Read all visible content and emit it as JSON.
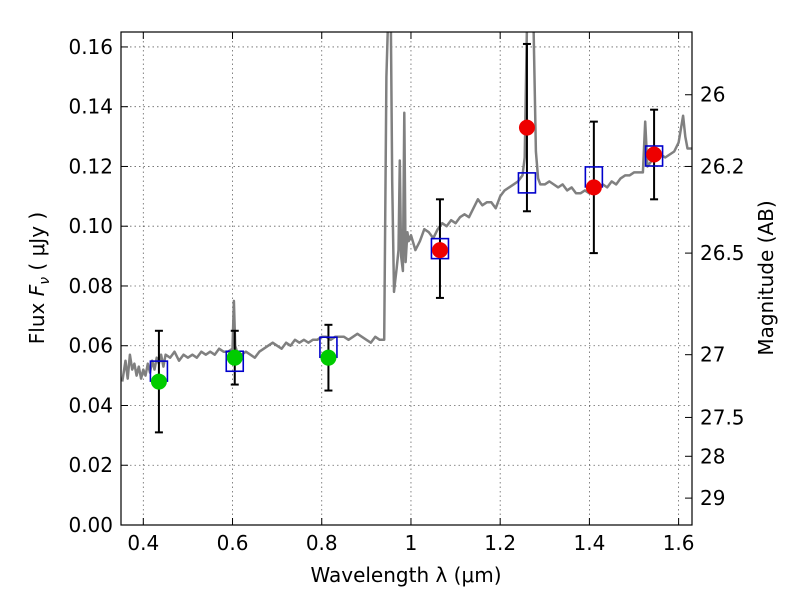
{
  "chart_data": {
    "type": "scatter",
    "xlabel": "Wavelength  λ (μm)",
    "ylabel_parts": [
      "Flux  ",
      "F",
      "ν",
      "  (  μJy  )"
    ],
    "ylabel_right": "Magnitude (AB)",
    "xlim": [
      0.35,
      1.63
    ],
    "ylim": [
      0.0,
      0.165
    ],
    "x_ticks": [
      {
        "v": 0.4,
        "label": "0.4"
      },
      {
        "v": 0.6,
        "label": "0.6"
      },
      {
        "v": 0.8,
        "label": "0.8"
      },
      {
        "v": 1.0,
        "label": "1"
      },
      {
        "v": 1.2,
        "label": "1.2"
      },
      {
        "v": 1.4,
        "label": "1.4"
      },
      {
        "v": 1.6,
        "label": "1.6"
      }
    ],
    "y_ticks": [
      {
        "v": 0.0,
        "label": "0.00"
      },
      {
        "v": 0.02,
        "label": "0.02"
      },
      {
        "v": 0.04,
        "label": "0.04"
      },
      {
        "v": 0.06,
        "label": "0.06"
      },
      {
        "v": 0.08,
        "label": "0.08"
      },
      {
        "v": 0.1,
        "label": "0.10"
      },
      {
        "v": 0.12,
        "label": "0.12"
      },
      {
        "v": 0.14,
        "label": "0.14"
      },
      {
        "v": 0.16,
        "label": "0.16"
      }
    ],
    "right_ticks": [
      {
        "flux": 0.144,
        "label": "26"
      },
      {
        "flux": 0.12,
        "label": "26.2"
      },
      {
        "flux": 0.091,
        "label": "26.5"
      },
      {
        "flux": 0.057,
        "label": "27"
      },
      {
        "flux": 0.036,
        "label": "27.5"
      },
      {
        "flux": 0.023,
        "label": "28"
      },
      {
        "flux": 0.009,
        "label": "29"
      }
    ],
    "grid": true,
    "series": [
      {
        "kind": "model_sed",
        "color": "#808080",
        "x": [
          0.353,
          0.36,
          0.365,
          0.37,
          0.375,
          0.38,
          0.385,
          0.39,
          0.395,
          0.4,
          0.405,
          0.41,
          0.415,
          0.42,
          0.425,
          0.43,
          0.435,
          0.44,
          0.445,
          0.45,
          0.46,
          0.47,
          0.48,
          0.49,
          0.5,
          0.51,
          0.52,
          0.53,
          0.54,
          0.55,
          0.56,
          0.57,
          0.58,
          0.59,
          0.6,
          0.603,
          0.606,
          0.61,
          0.62,
          0.63,
          0.64,
          0.65,
          0.66,
          0.67,
          0.68,
          0.69,
          0.7,
          0.71,
          0.72,
          0.73,
          0.74,
          0.75,
          0.76,
          0.77,
          0.78,
          0.79,
          0.8,
          0.81,
          0.82,
          0.83,
          0.84,
          0.85,
          0.86,
          0.87,
          0.88,
          0.89,
          0.9,
          0.91,
          0.92,
          0.93,
          0.94,
          0.945,
          0.948,
          0.952,
          0.955,
          0.958,
          0.962,
          0.965,
          0.968,
          0.972,
          0.975,
          0.978,
          0.982,
          0.985,
          0.988,
          0.992,
          0.995,
          1.0,
          1.01,
          1.02,
          1.03,
          1.04,
          1.05,
          1.06,
          1.07,
          1.08,
          1.09,
          1.1,
          1.11,
          1.12,
          1.13,
          1.14,
          1.15,
          1.16,
          1.17,
          1.18,
          1.19,
          1.2,
          1.21,
          1.22,
          1.23,
          1.24,
          1.25,
          1.255,
          1.26,
          1.265,
          1.27,
          1.275,
          1.28,
          1.285,
          1.29,
          1.3,
          1.31,
          1.32,
          1.33,
          1.34,
          1.35,
          1.36,
          1.37,
          1.38,
          1.39,
          1.4,
          1.41,
          1.42,
          1.43,
          1.44,
          1.45,
          1.46,
          1.47,
          1.48,
          1.49,
          1.5,
          1.51,
          1.52,
          1.525,
          1.53,
          1.535,
          1.54,
          1.55,
          1.56,
          1.57,
          1.58,
          1.59,
          1.6,
          1.61,
          1.615,
          1.62,
          1.63
        ],
        "y": [
          0.048,
          0.055,
          0.049,
          0.057,
          0.052,
          0.054,
          0.05,
          0.053,
          0.049,
          0.052,
          0.05,
          0.054,
          0.051,
          0.055,
          0.052,
          0.056,
          0.054,
          0.057,
          0.053,
          0.057,
          0.056,
          0.058,
          0.055,
          0.057,
          0.056,
          0.057,
          0.056,
          0.058,
          0.057,
          0.058,
          0.057,
          0.059,
          0.058,
          0.058,
          0.059,
          0.075,
          0.06,
          0.058,
          0.057,
          0.058,
          0.057,
          0.056,
          0.058,
          0.059,
          0.06,
          0.061,
          0.06,
          0.059,
          0.061,
          0.06,
          0.062,
          0.061,
          0.062,
          0.061,
          0.062,
          0.062,
          0.063,
          0.063,
          0.062,
          0.063,
          0.063,
          0.063,
          0.062,
          0.063,
          0.064,
          0.063,
          0.062,
          0.061,
          0.063,
          0.062,
          0.062,
          0.15,
          0.166,
          0.166,
          0.166,
          0.115,
          0.078,
          0.082,
          0.086,
          0.092,
          0.122,
          0.09,
          0.085,
          0.138,
          0.088,
          0.098,
          0.095,
          0.097,
          0.092,
          0.095,
          0.099,
          0.098,
          0.096,
          0.099,
          0.101,
          0.1,
          0.102,
          0.101,
          0.103,
          0.104,
          0.103,
          0.106,
          0.109,
          0.107,
          0.108,
          0.108,
          0.106,
          0.11,
          0.112,
          0.113,
          0.114,
          0.115,
          0.117,
          0.123,
          0.166,
          0.166,
          0.166,
          0.166,
          0.125,
          0.116,
          0.114,
          0.114,
          0.115,
          0.114,
          0.113,
          0.114,
          0.112,
          0.113,
          0.111,
          0.111,
          0.112,
          0.111,
          0.112,
          0.113,
          0.114,
          0.113,
          0.115,
          0.114,
          0.116,
          0.117,
          0.117,
          0.118,
          0.118,
          0.118,
          0.135,
          0.12,
          0.121,
          0.122,
          0.122,
          0.124,
          0.123,
          0.124,
          0.125,
          0.128,
          0.137,
          0.13,
          0.126,
          0.126
        ]
      },
      {
        "kind": "model_boxes",
        "color": "#0000cc",
        "points": [
          [
            0.435,
            0.0515
          ],
          [
            0.605,
            0.0548
          ],
          [
            0.815,
            0.0595
          ],
          [
            1.065,
            0.0925
          ],
          [
            1.26,
            0.1145
          ],
          [
            1.41,
            0.1165
          ],
          [
            1.545,
            0.1235
          ]
        ]
      },
      {
        "kind": "observed_green",
        "color": "#00cc00",
        "points": [
          {
            "x": 0.435,
            "y": 0.048,
            "lo": 0.031,
            "hi": 0.065
          },
          {
            "x": 0.605,
            "y": 0.056,
            "lo": 0.047,
            "hi": 0.065
          },
          {
            "x": 0.815,
            "y": 0.056,
            "lo": 0.045,
            "hi": 0.067
          }
        ]
      },
      {
        "kind": "observed_red",
        "color": "#ee0000",
        "points": [
          {
            "x": 1.065,
            "y": 0.092,
            "lo": 0.076,
            "hi": 0.109
          },
          {
            "x": 1.26,
            "y": 0.133,
            "lo": 0.105,
            "hi": 0.161
          },
          {
            "x": 1.41,
            "y": 0.113,
            "lo": 0.091,
            "hi": 0.135
          },
          {
            "x": 1.545,
            "y": 0.124,
            "lo": 0.109,
            "hi": 0.139
          }
        ]
      }
    ]
  }
}
